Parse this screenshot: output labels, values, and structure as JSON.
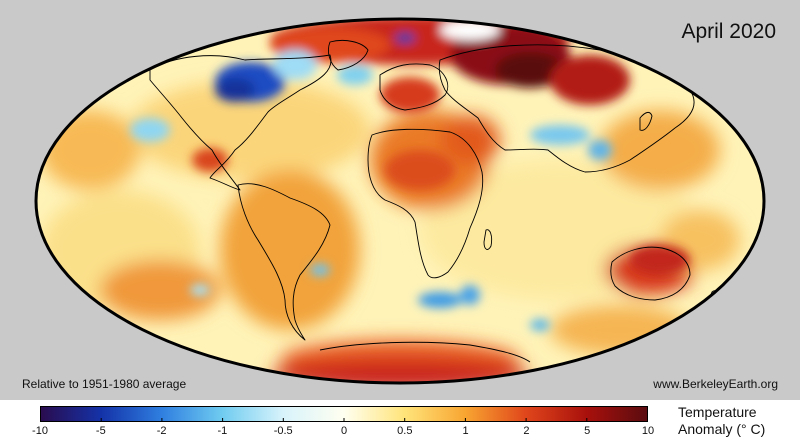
{
  "map": {
    "title": "April 2020",
    "baseline_note": "Relative to 1951-1980 average",
    "credit": "www.BerkeleyEarth.org",
    "projection": "Mollweide",
    "background": "#c9c9c9",
    "outline_color": "#000000"
  },
  "colorbar": {
    "title_line1": "Temperature",
    "title_line2": "Anomaly (° C)",
    "ticks": [
      "-10",
      "-5",
      "-2",
      "-1",
      "-0.5",
      "0",
      "0.5",
      "1",
      "2",
      "5",
      "10"
    ],
    "colors": [
      "#2a0c4e",
      "#1432a8",
      "#2f7fe0",
      "#70ccf0",
      "#d8f3fb",
      "#fffff0",
      "#ffe47a",
      "#f8a531",
      "#e0461b",
      "#a8100c",
      "#5a0c10"
    ]
  }
}
